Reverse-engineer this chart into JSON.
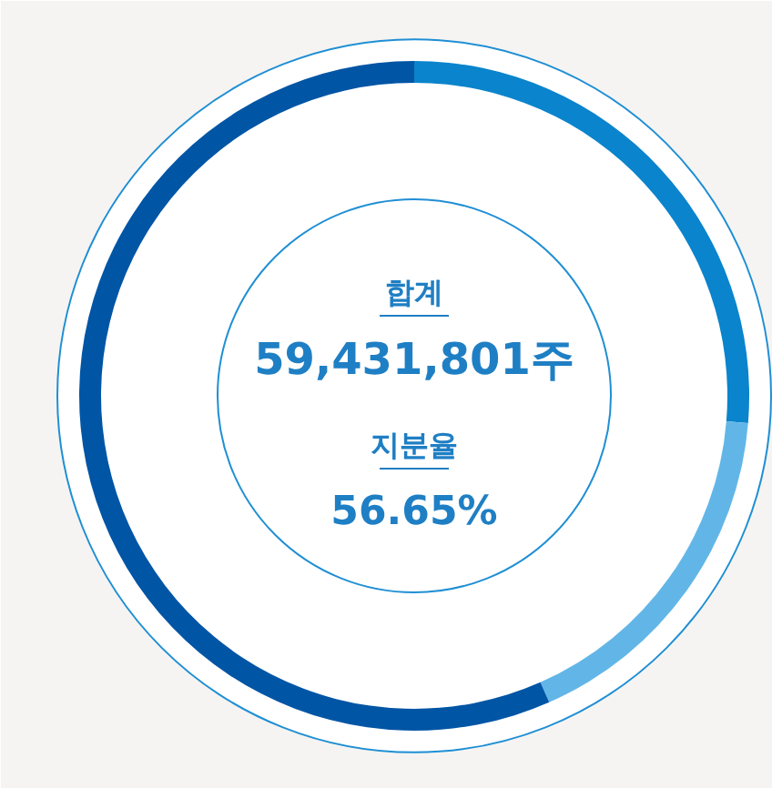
{
  "chart_data": {
    "type": "donut",
    "categories": [
      null,
      null,
      null
    ],
    "values": [
      26.3,
      17.1,
      56.6
    ],
    "colors": [
      "#0a84cc",
      "#62b6e7",
      "#0055a5"
    ],
    "annotations": [
      "합계",
      "59,431,801주",
      "지분율",
      "56.65%"
    ]
  }
}
